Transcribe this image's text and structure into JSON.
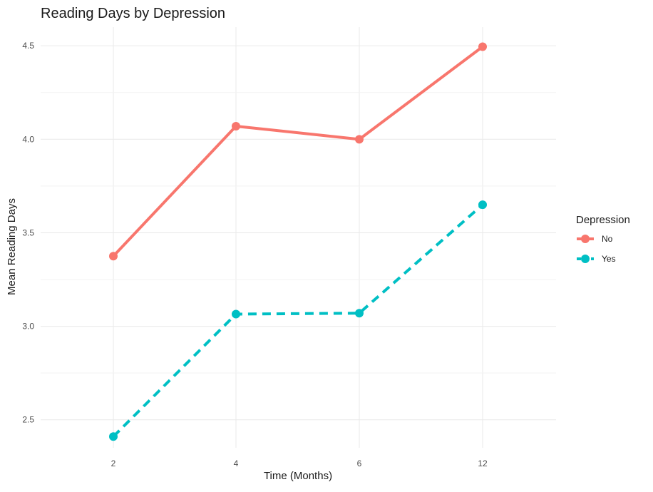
{
  "chart_data": {
    "type": "line",
    "title": "Reading Days by Depression",
    "xlabel": "Time (Months)",
    "ylabel": "Mean Reading Days",
    "categories": [
      "2",
      "4",
      "6",
      "12"
    ],
    "ylim": [
      2.35,
      4.6
    ],
    "yticks": [
      2.5,
      3.0,
      3.5,
      4.0,
      4.5
    ],
    "ytick_labels": [
      "2.5",
      "3.0",
      "3.5",
      "4.0",
      "4.5"
    ],
    "grid": true,
    "legend": {
      "title": "Depression",
      "position": "right"
    },
    "series": [
      {
        "name": "No",
        "values": [
          3.375,
          4.07,
          4.0,
          4.495
        ],
        "color": "#f8766d",
        "linestyle": "solid"
      },
      {
        "name": "Yes",
        "values": [
          2.41,
          3.065,
          3.07,
          3.65
        ],
        "color": "#00bfc4",
        "linestyle": "dashed"
      }
    ]
  }
}
